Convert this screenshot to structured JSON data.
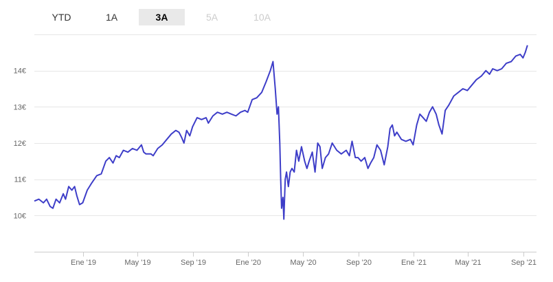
{
  "range_selector": {
    "buttons": [
      {
        "label": "YTD",
        "state": "normal"
      },
      {
        "label": "1A",
        "state": "normal"
      },
      {
        "label": "3A",
        "state": "active"
      },
      {
        "label": "5A",
        "state": "disabled"
      },
      {
        "label": "10A",
        "state": "disabled"
      }
    ]
  },
  "chart_data": {
    "type": "line",
    "title": "",
    "xlabel": "",
    "ylabel": "",
    "grid": true,
    "line_color": "#3d3dc8",
    "ylim": [
      9.0,
      15.0
    ],
    "xlim": [
      "2018-09-15",
      "2021-09-30"
    ],
    "y_ticks": [
      {
        "value": 10,
        "label": "10€"
      },
      {
        "value": 11,
        "label": "11€"
      },
      {
        "value": 12,
        "label": "12€"
      },
      {
        "value": 13,
        "label": "13€"
      },
      {
        "value": 14,
        "label": "14€"
      }
    ],
    "x_ticks": [
      {
        "date": "2019-01-01",
        "label": "Ene '19"
      },
      {
        "date": "2019-05-01",
        "label": "May '19"
      },
      {
        "date": "2019-09-01",
        "label": "Sep '19"
      },
      {
        "date": "2020-01-01",
        "label": "Ene '20"
      },
      {
        "date": "2020-05-01",
        "label": "May '20"
      },
      {
        "date": "2020-09-01",
        "label": "Sep '20"
      },
      {
        "date": "2021-01-01",
        "label": "Ene '21"
      },
      {
        "date": "2021-05-01",
        "label": "May '21"
      },
      {
        "date": "2021-09-01",
        "label": "Sep '21"
      }
    ],
    "series": [
      {
        "points": [
          [
            "2018-09-15",
            10.4
          ],
          [
            "2018-09-25",
            10.45
          ],
          [
            "2018-10-05",
            10.35
          ],
          [
            "2018-10-12",
            10.45
          ],
          [
            "2018-10-20",
            10.25
          ],
          [
            "2018-10-26",
            10.2
          ],
          [
            "2018-11-02",
            10.45
          ],
          [
            "2018-11-10",
            10.35
          ],
          [
            "2018-11-18",
            10.6
          ],
          [
            "2018-11-23",
            10.45
          ],
          [
            "2018-11-30",
            10.8
          ],
          [
            "2018-12-07",
            10.7
          ],
          [
            "2018-12-13",
            10.8
          ],
          [
            "2018-12-18",
            10.55
          ],
          [
            "2018-12-24",
            10.3
          ],
          [
            "2018-12-31",
            10.35
          ],
          [
            "2019-01-10",
            10.7
          ],
          [
            "2019-01-20",
            10.9
          ],
          [
            "2019-01-31",
            11.1
          ],
          [
            "2019-02-10",
            11.15
          ],
          [
            "2019-02-20",
            11.5
          ],
          [
            "2019-02-28",
            11.6
          ],
          [
            "2019-03-08",
            11.45
          ],
          [
            "2019-03-15",
            11.65
          ],
          [
            "2019-03-22",
            11.6
          ],
          [
            "2019-03-31",
            11.8
          ],
          [
            "2019-04-10",
            11.75
          ],
          [
            "2019-04-20",
            11.85
          ],
          [
            "2019-04-30",
            11.8
          ],
          [
            "2019-05-10",
            11.95
          ],
          [
            "2019-05-15",
            11.75
          ],
          [
            "2019-05-20",
            11.7
          ],
          [
            "2019-05-31",
            11.7
          ],
          [
            "2019-06-05",
            11.65
          ],
          [
            "2019-06-15",
            11.85
          ],
          [
            "2019-06-25",
            11.95
          ],
          [
            "2019-07-05",
            12.1
          ],
          [
            "2019-07-15",
            12.25
          ],
          [
            "2019-07-25",
            12.35
          ],
          [
            "2019-08-01",
            12.3
          ],
          [
            "2019-08-07",
            12.15
          ],
          [
            "2019-08-12",
            12.0
          ],
          [
            "2019-08-18",
            12.35
          ],
          [
            "2019-08-25",
            12.2
          ],
          [
            "2019-08-31",
            12.45
          ],
          [
            "2019-09-10",
            12.7
          ],
          [
            "2019-09-20",
            12.65
          ],
          [
            "2019-09-30",
            12.7
          ],
          [
            "2019-10-05",
            12.55
          ],
          [
            "2019-10-15",
            12.75
          ],
          [
            "2019-10-25",
            12.85
          ],
          [
            "2019-11-05",
            12.8
          ],
          [
            "2019-11-15",
            12.85
          ],
          [
            "2019-11-25",
            12.8
          ],
          [
            "2019-12-05",
            12.75
          ],
          [
            "2019-12-15",
            12.85
          ],
          [
            "2019-12-25",
            12.9
          ],
          [
            "2019-12-31",
            12.85
          ],
          [
            "2020-01-10",
            13.2
          ],
          [
            "2020-01-20",
            13.25
          ],
          [
            "2020-01-31",
            13.4
          ],
          [
            "2020-02-10",
            13.7
          ],
          [
            "2020-02-19",
            14.0
          ],
          [
            "2020-02-25",
            14.25
          ],
          [
            "2020-03-01",
            13.5
          ],
          [
            "2020-03-05",
            12.8
          ],
          [
            "2020-03-08",
            13.0
          ],
          [
            "2020-03-11",
            12.0
          ],
          [
            "2020-03-13",
            11.0
          ],
          [
            "2020-03-15",
            10.2
          ],
          [
            "2020-03-18",
            10.5
          ],
          [
            "2020-03-20",
            9.9
          ],
          [
            "2020-03-23",
            11.0
          ],
          [
            "2020-03-26",
            11.2
          ],
          [
            "2020-03-30",
            10.8
          ],
          [
            "2020-04-03",
            11.2
          ],
          [
            "2020-04-07",
            11.3
          ],
          [
            "2020-04-12",
            11.2
          ],
          [
            "2020-04-17",
            11.8
          ],
          [
            "2020-04-22",
            11.5
          ],
          [
            "2020-04-28",
            11.9
          ],
          [
            "2020-05-05",
            11.5
          ],
          [
            "2020-05-10",
            11.3
          ],
          [
            "2020-05-15",
            11.5
          ],
          [
            "2020-05-22",
            11.75
          ],
          [
            "2020-05-28",
            11.2
          ],
          [
            "2020-06-03",
            12.0
          ],
          [
            "2020-06-08",
            11.9
          ],
          [
            "2020-06-13",
            11.3
          ],
          [
            "2020-06-20",
            11.6
          ],
          [
            "2020-06-27",
            11.7
          ],
          [
            "2020-07-05",
            12.0
          ],
          [
            "2020-07-15",
            11.8
          ],
          [
            "2020-07-25",
            11.7
          ],
          [
            "2020-08-05",
            11.8
          ],
          [
            "2020-08-12",
            11.65
          ],
          [
            "2020-08-18",
            12.05
          ],
          [
            "2020-08-25",
            11.6
          ],
          [
            "2020-08-31",
            11.6
          ],
          [
            "2020-09-07",
            11.5
          ],
          [
            "2020-09-15",
            11.6
          ],
          [
            "2020-09-22",
            11.3
          ],
          [
            "2020-09-28",
            11.45
          ],
          [
            "2020-10-05",
            11.6
          ],
          [
            "2020-10-12",
            11.95
          ],
          [
            "2020-10-20",
            11.8
          ],
          [
            "2020-10-28",
            11.4
          ],
          [
            "2020-11-05",
            11.9
          ],
          [
            "2020-11-10",
            12.4
          ],
          [
            "2020-11-15",
            12.5
          ],
          [
            "2020-11-20",
            12.2
          ],
          [
            "2020-11-25",
            12.3
          ],
          [
            "2020-12-05",
            12.1
          ],
          [
            "2020-12-15",
            12.05
          ],
          [
            "2020-12-25",
            12.1
          ],
          [
            "2020-12-31",
            11.95
          ],
          [
            "2021-01-08",
            12.5
          ],
          [
            "2021-01-15",
            12.8
          ],
          [
            "2021-01-22",
            12.7
          ],
          [
            "2021-01-29",
            12.6
          ],
          [
            "2021-02-05",
            12.85
          ],
          [
            "2021-02-12",
            13.0
          ],
          [
            "2021-02-20",
            12.8
          ],
          [
            "2021-02-26",
            12.5
          ],
          [
            "2021-03-05",
            12.25
          ],
          [
            "2021-03-12",
            12.9
          ],
          [
            "2021-03-20",
            13.05
          ],
          [
            "2021-03-31",
            13.3
          ],
          [
            "2021-04-10",
            13.4
          ],
          [
            "2021-04-20",
            13.5
          ],
          [
            "2021-04-30",
            13.45
          ],
          [
            "2021-05-10",
            13.6
          ],
          [
            "2021-05-20",
            13.75
          ],
          [
            "2021-05-31",
            13.85
          ],
          [
            "2021-06-10",
            14.0
          ],
          [
            "2021-06-18",
            13.9
          ],
          [
            "2021-06-25",
            14.05
          ],
          [
            "2021-07-05",
            14.0
          ],
          [
            "2021-07-15",
            14.05
          ],
          [
            "2021-07-25",
            14.2
          ],
          [
            "2021-08-05",
            14.25
          ],
          [
            "2021-08-15",
            14.4
          ],
          [
            "2021-08-25",
            14.45
          ],
          [
            "2021-08-31",
            14.35
          ],
          [
            "2021-09-05",
            14.5
          ],
          [
            "2021-09-10",
            14.7
          ]
        ]
      }
    ]
  }
}
